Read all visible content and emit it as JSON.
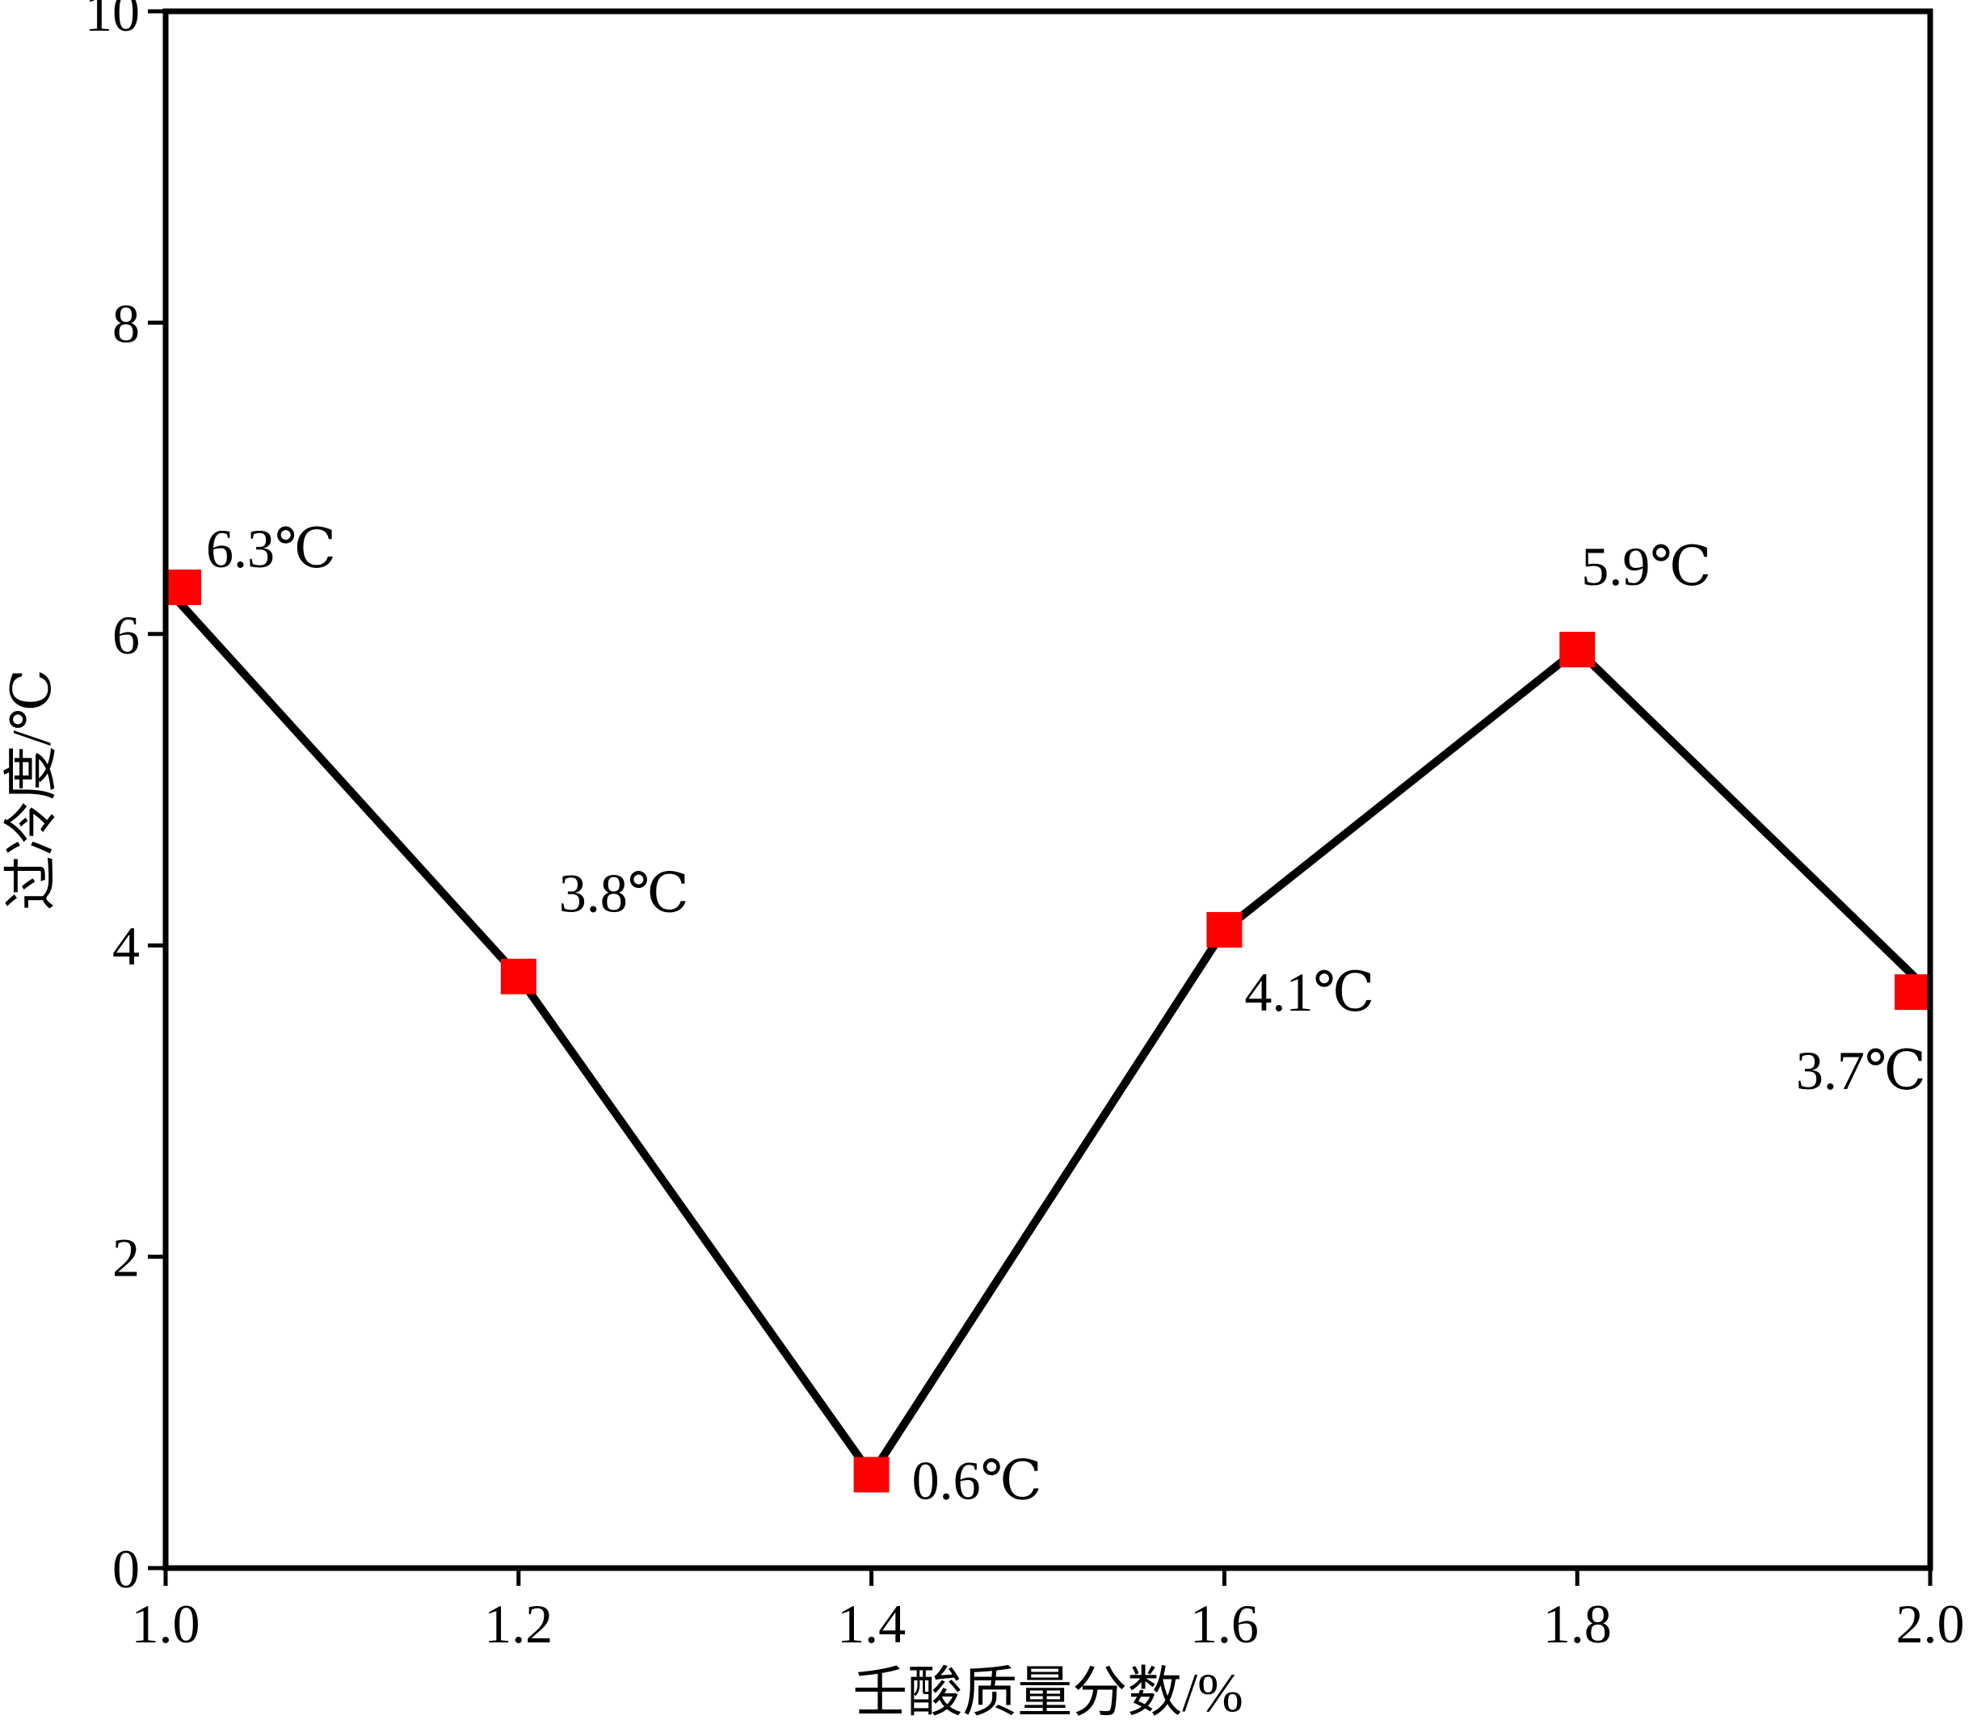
{
  "chart_data": {
    "type": "line",
    "title": "",
    "xlabel": "壬酸质量分数/%",
    "ylabel": "过冷度/℃",
    "xlim": [
      1.0,
      2.0
    ],
    "ylim": [
      0,
      10
    ],
    "x_ticks": [
      "1.0",
      "1.2",
      "1.4",
      "1.6",
      "1.8",
      "2.0"
    ],
    "y_ticks": [
      "0",
      "2",
      "4",
      "6",
      "8",
      "10"
    ],
    "grid": false,
    "legend": "none",
    "series": [
      {
        "x": [
          1.0,
          1.2,
          1.4,
          1.6,
          1.8,
          2.0
        ],
        "values": [
          6.3,
          3.8,
          0.6,
          4.1,
          5.9,
          3.7
        ],
        "labels": [
          "6.3℃",
          "3.8℃",
          "0.6℃",
          "4.1℃",
          "5.9℃",
          "3.7℃"
        ],
        "line_color": "#000000",
        "marker_color": "#ff0000",
        "marker": "square"
      }
    ]
  }
}
